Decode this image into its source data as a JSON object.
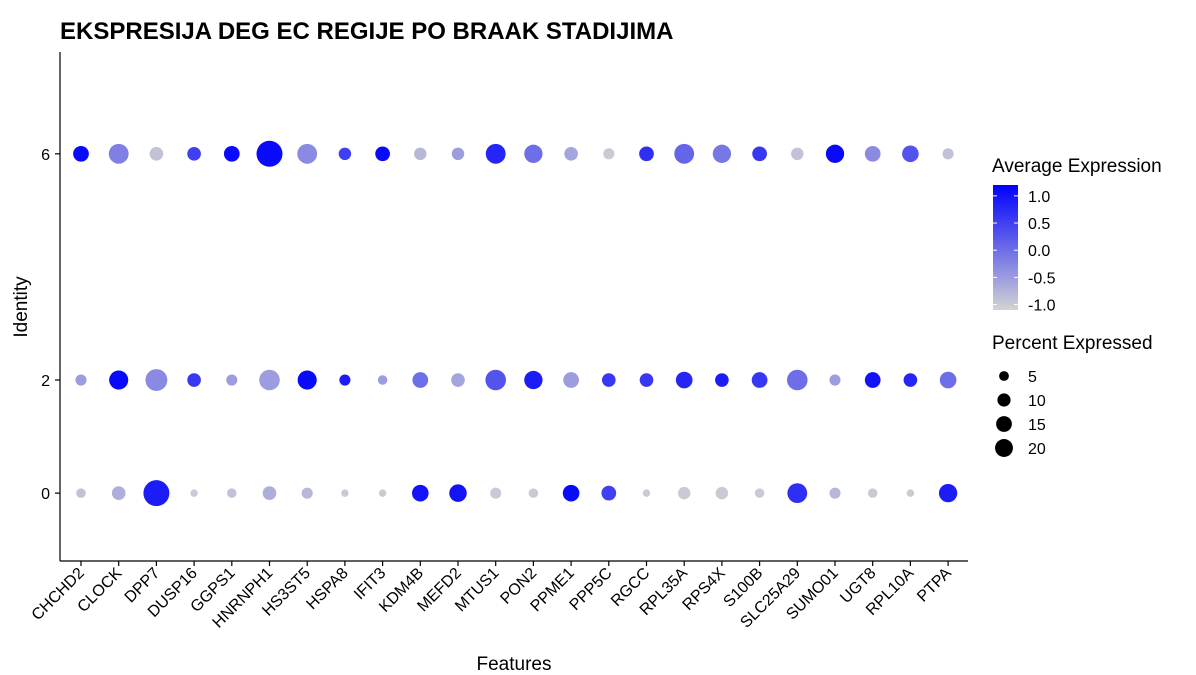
{
  "chart_data": {
    "type": "dot",
    "title": "EKSPRESIJA DEG EC REGIJE PO BRAAK STADIJIMA",
    "xlabel": "Features",
    "ylabel": "Identity",
    "features": [
      "CHCHD2",
      "CLOCK",
      "DPP7",
      "DUSP16",
      "GGPS1",
      "HNRNPH1",
      "HS3ST5",
      "HSPA8",
      "IFIT3",
      "KDM4B",
      "MEFD2",
      "MTUS1",
      "PON2",
      "PPME1",
      "PPP5C",
      "RGCC",
      "RPL35A",
      "RPS4X",
      "S100B",
      "SLC25A29",
      "SUMO01",
      "UGT8",
      "RPL10A",
      "PTPA"
    ],
    "identities": [
      "0",
      "2",
      "6"
    ],
    "series": [
      {
        "identity": "6",
        "avg_expression": [
          1.1,
          -0.2,
          -0.9,
          0.5,
          1.1,
          1.1,
          -0.3,
          0.5,
          1.1,
          -0.8,
          -0.5,
          0.8,
          0.0,
          -0.6,
          -1.0,
          0.7,
          0.1,
          -0.1,
          0.6,
          -0.9,
          1.1,
          -0.3,
          0.3,
          -0.9
        ],
        "pct_expressed": [
          7,
          12,
          5,
          5,
          7,
          22,
          12,
          4,
          6,
          4,
          4,
          12,
          10,
          5,
          3,
          6,
          12,
          10,
          6,
          4,
          10,
          7,
          8,
          3
        ]
      },
      {
        "identity": "2",
        "avg_expression": [
          -0.5,
          1.1,
          -0.3,
          0.6,
          -0.5,
          -0.5,
          1.1,
          0.9,
          -0.5,
          0.0,
          -0.6,
          0.3,
          0.9,
          -0.5,
          0.6,
          0.6,
          0.8,
          0.9,
          0.6,
          0.0,
          -0.5,
          1.0,
          0.8,
          0.0
        ],
        "pct_expressed": [
          3,
          11,
          15,
          5,
          3,
          13,
          11,
          3,
          2,
          7,
          5,
          13,
          10,
          7,
          5,
          5,
          8,
          5,
          7,
          13,
          3,
          7,
          5,
          8
        ]
      },
      {
        "identity": "0",
        "avg_expression": [
          -0.9,
          -0.7,
          0.9,
          -1.0,
          -0.9,
          -0.7,
          -0.8,
          -1.0,
          -1.0,
          1.0,
          1.0,
          -1.0,
          -1.0,
          1.1,
          0.5,
          -1.0,
          -1.0,
          -1.0,
          -1.0,
          0.7,
          -0.8,
          -1.0,
          -1.0,
          0.9
        ],
        "pct_expressed": [
          2,
          5,
          22,
          1,
          2,
          5,
          3,
          1,
          1,
          8,
          9,
          3,
          2,
          8,
          6,
          1,
          4,
          4,
          2,
          12,
          3,
          2,
          1,
          10
        ]
      }
    ],
    "y_range": [
      -1.2,
      7.8
    ],
    "color_scale": {
      "title": "Average Expression",
      "low": "#d3d3d3",
      "high": "#0000ff",
      "range": [
        -1.1,
        1.2
      ],
      "ticks": [
        "1.0",
        "0.5",
        "0.0",
        "-0.5",
        "-1.0"
      ],
      "tick_values": [
        1.0,
        0.5,
        0.0,
        -0.5,
        -1.0
      ]
    },
    "size_scale": {
      "title": "Percent Expressed",
      "ticks": [
        "5",
        "10",
        "15",
        "20"
      ],
      "tick_values": [
        5,
        10,
        15,
        20
      ]
    },
    "grid": false
  }
}
